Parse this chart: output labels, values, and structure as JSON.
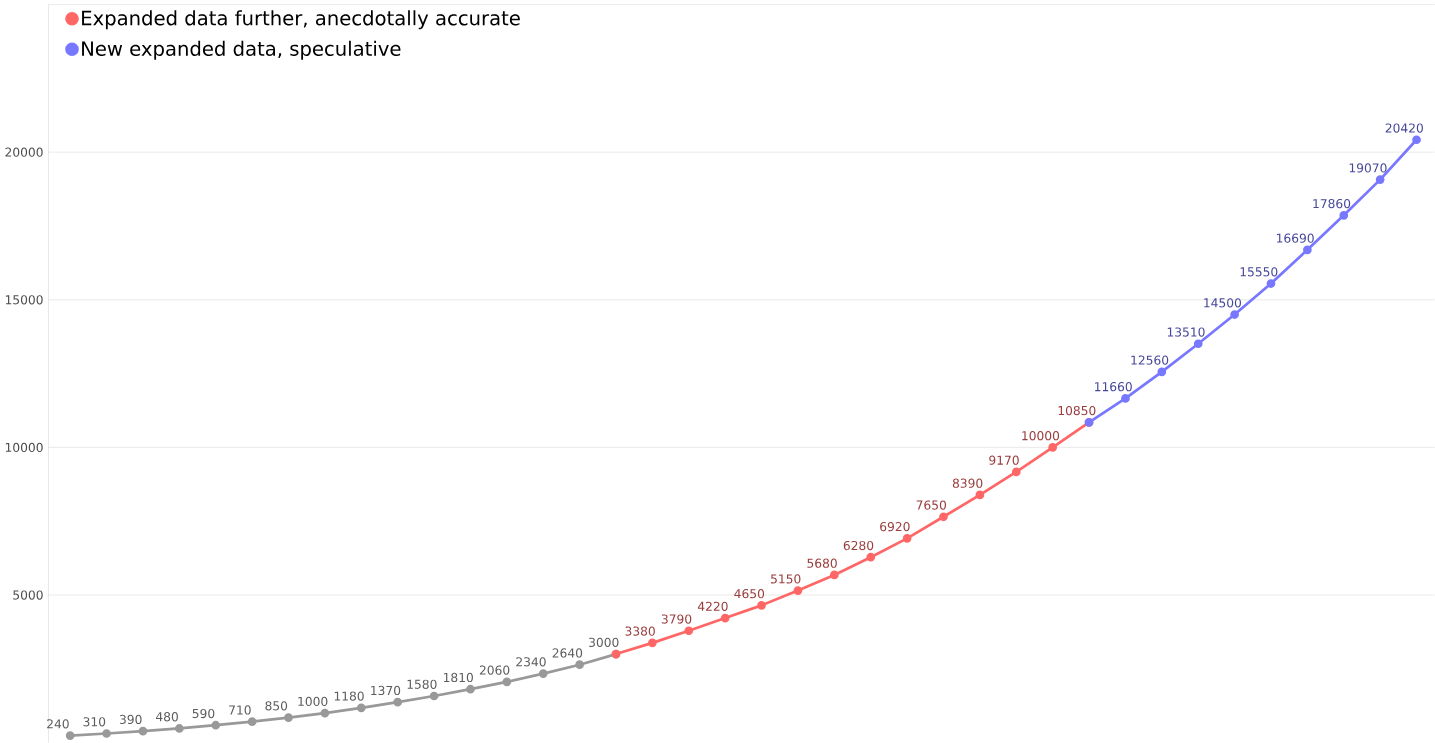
{
  "chart_data": {
    "type": "line",
    "categories": [
      null,
      null,
      null,
      null,
      null,
      null,
      null,
      null,
      null,
      null,
      null,
      null,
      null,
      null,
      null,
      null,
      null,
      null,
      null,
      null,
      null,
      null,
      null,
      null,
      null,
      null,
      null,
      null,
      null,
      null,
      null,
      null,
      null,
      null,
      null,
      null,
      null,
      null
    ],
    "ylim": [
      0,
      25000
    ],
    "yticks": [
      5000,
      10000,
      15000,
      20000,
      {
        "value": 25000,
        "label": null
      }
    ],
    "grid": "y",
    "legend": "top left",
    "marker": "circle",
    "line_style": "solid",
    "tick_labels": "y",
    "series": [
      {
        "color": "#999999",
        "values": [
          240,
          310,
          390,
          480,
          590,
          710,
          850,
          1000,
          1180,
          1370,
          1580,
          1810,
          2060,
          2340,
          2640,
          3000,
          null,
          null,
          null,
          null,
          null,
          null,
          null,
          null,
          null,
          null,
          null,
          null,
          null,
          null,
          null,
          null,
          null,
          null,
          null,
          null,
          null,
          null
        ],
        "value_labels": [
          "240",
          "310",
          "390",
          "480",
          "590",
          "710",
          "850",
          "1000",
          "1180",
          "1370",
          "1580",
          "1810",
          "2060",
          "2340",
          "2640",
          "3000",
          null,
          null,
          null,
          null,
          null,
          null,
          null,
          null,
          null,
          null,
          null,
          null,
          null,
          null,
          null,
          null,
          null,
          null,
          null,
          null,
          null,
          null
        ]
      },
      {
        "name": "Expanded data further, anecdotally accurate",
        "color": "#ff6666",
        "values": [
          null,
          null,
          null,
          null,
          null,
          null,
          null,
          null,
          null,
          null,
          null,
          null,
          null,
          null,
          null,
          3000,
          3380,
          3790,
          4220,
          4650,
          5150,
          5680,
          6280,
          6920,
          7650,
          8390,
          9170,
          10000,
          10850,
          null,
          null,
          null,
          null,
          null,
          null,
          null,
          null,
          null
        ],
        "value_labels": [
          null,
          null,
          null,
          null,
          null,
          null,
          null,
          null,
          null,
          null,
          null,
          null,
          null,
          null,
          null,
          null,
          "3380",
          "3790",
          "4220",
          "4650",
          "5150",
          "5680",
          "6280",
          "6920",
          "7650",
          "8390",
          "9170",
          "10000",
          "10850",
          null,
          null,
          null,
          null,
          null,
          null,
          null,
          null,
          null
        ]
      },
      {
        "name": "New expanded data, speculative",
        "color": "#7777ff",
        "values": [
          null,
          null,
          null,
          null,
          null,
          null,
          null,
          null,
          null,
          null,
          null,
          null,
          null,
          null,
          null,
          null,
          null,
          null,
          null,
          null,
          null,
          null,
          null,
          null,
          null,
          null,
          null,
          null,
          10850,
          11660,
          12560,
          13510,
          14500,
          15550,
          16690,
          17860,
          19070,
          20420
        ],
        "value_labels": [
          null,
          null,
          null,
          null,
          null,
          null,
          null,
          null,
          null,
          null,
          null,
          null,
          null,
          null,
          null,
          null,
          null,
          null,
          null,
          null,
          null,
          null,
          null,
          null,
          null,
          null,
          null,
          null,
          null,
          "11660",
          "12560",
          "13510",
          "14500",
          "15550",
          "16690",
          "17860",
          "19070",
          "20420"
        ]
      }
    ]
  }
}
